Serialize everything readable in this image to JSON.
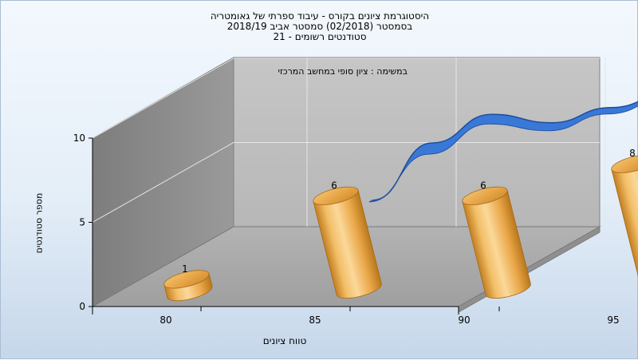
{
  "chart_data": {
    "type": "bar",
    "title_lines": [
      "היסטוגרמת ציונים בקורס - עיבוד ספרתי של גאומטריה",
      "בסמסטר  (02/2018)  סמסטר אביב 2018/19",
      "סטודנטים רשומים - 21"
    ],
    "subtitle": "במשימה : ציון סופי במחשב המרכזי",
    "xlabel": "טווח ציונים",
    "ylabel": "מספר סטודנטים",
    "x_ticks": [
      "80",
      "85",
      "90",
      "95"
    ],
    "y_ticks": [
      0,
      5,
      10
    ],
    "ylim": [
      0,
      10
    ],
    "bars": [
      {
        "x": 80,
        "value": 1,
        "label": "1"
      },
      {
        "x": 85,
        "value": 6,
        "label": "6"
      },
      {
        "x": 90,
        "value": 6,
        "label": "6"
      },
      {
        "x": 95,
        "value": 8,
        "label": "8"
      }
    ],
    "curve": [
      {
        "x": 85,
        "value": 4.7
      },
      {
        "x": 87,
        "value": 8.1
      },
      {
        "x": 89,
        "value": 9.8
      },
      {
        "x": 91,
        "value": 9.3
      },
      {
        "x": 93,
        "value": 10.2
      },
      {
        "x": 96,
        "value": 12.4
      }
    ],
    "colors": {
      "bar_light": "#fbd89a",
      "bar_mid": "#eaa84a",
      "bar_dark": "#b9771c",
      "curve_front": "#3a78d8",
      "curve_back": "#1f54a8",
      "back_wall": "#c0c0c0",
      "side_wall": "#8c8c8c",
      "floor": "#a9a9a9"
    },
    "grid": true,
    "legend": "none"
  }
}
